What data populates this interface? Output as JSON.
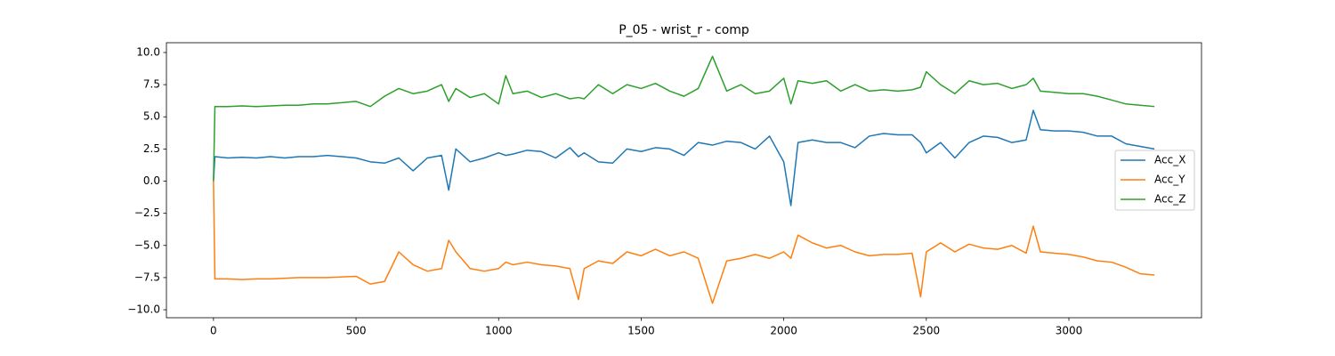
{
  "chart_data": {
    "type": "line",
    "title": "P_05 - wrist_r - comp",
    "x": [
      0,
      5,
      50,
      100,
      150,
      200,
      250,
      300,
      350,
      400,
      450,
      500,
      550,
      600,
      650,
      700,
      750,
      800,
      825,
      850,
      900,
      950,
      1000,
      1025,
      1050,
      1100,
      1150,
      1200,
      1250,
      1280,
      1300,
      1350,
      1400,
      1450,
      1500,
      1550,
      1600,
      1650,
      1700,
      1750,
      1800,
      1850,
      1900,
      1950,
      2000,
      2025,
      2050,
      2100,
      2150,
      2200,
      2250,
      2300,
      2350,
      2400,
      2450,
      2480,
      2500,
      2550,
      2600,
      2650,
      2700,
      2750,
      2800,
      2850,
      2875,
      2900,
      2950,
      3000,
      3050,
      3100,
      3150,
      3200,
      3250,
      3300
    ],
    "series": [
      {
        "name": "Acc_X",
        "color": "#1f77b4",
        "values": [
          0,
          1.9,
          1.8,
          1.85,
          1.8,
          1.9,
          1.8,
          1.9,
          1.9,
          2.0,
          1.9,
          1.8,
          1.5,
          1.4,
          1.8,
          0.8,
          1.8,
          2.0,
          -0.7,
          2.5,
          1.5,
          1.8,
          2.2,
          2.0,
          2.1,
          2.4,
          2.3,
          1.8,
          2.6,
          1.9,
          2.2,
          1.5,
          1.4,
          2.5,
          2.3,
          2.6,
          2.5,
          2.0,
          3.0,
          2.8,
          3.1,
          3.0,
          2.5,
          3.5,
          1.5,
          -1.9,
          3.0,
          3.2,
          3.0,
          3.0,
          2.6,
          3.5,
          3.7,
          3.6,
          3.6,
          3.0,
          2.2,
          3.0,
          1.8,
          3.0,
          3.5,
          3.4,
          3.0,
          3.2,
          5.5,
          4.0,
          3.9,
          3.9,
          3.8,
          3.5,
          3.5,
          2.9,
          2.7,
          2.5
        ]
      },
      {
        "name": "Acc_Y",
        "color": "#ff7f0e",
        "values": [
          0,
          -7.6,
          -7.6,
          -7.65,
          -7.6,
          -7.6,
          -7.55,
          -7.5,
          -7.5,
          -7.5,
          -7.45,
          -7.4,
          -8.0,
          -7.8,
          -5.5,
          -6.5,
          -7.0,
          -6.8,
          -4.6,
          -5.5,
          -6.8,
          -7.0,
          -6.8,
          -6.3,
          -6.5,
          -6.3,
          -6.5,
          -6.6,
          -6.8,
          -9.2,
          -6.8,
          -6.2,
          -6.4,
          -5.5,
          -5.8,
          -5.3,
          -5.8,
          -5.5,
          -6.0,
          -9.5,
          -6.2,
          -6.0,
          -5.7,
          -6.0,
          -5.5,
          -6.0,
          -4.2,
          -4.8,
          -5.2,
          -5.0,
          -5.5,
          -5.8,
          -5.7,
          -5.7,
          -5.6,
          -9.0,
          -5.5,
          -4.8,
          -5.5,
          -4.9,
          -5.2,
          -5.3,
          -5.0,
          -5.6,
          -3.5,
          -5.5,
          -5.6,
          -5.7,
          -5.9,
          -6.2,
          -6.3,
          -6.7,
          -7.2,
          -7.3
        ]
      },
      {
        "name": "Acc_Z",
        "color": "#2ca02c",
        "values": [
          0,
          5.8,
          5.8,
          5.85,
          5.8,
          5.85,
          5.9,
          5.9,
          6.0,
          6.0,
          6.1,
          6.2,
          5.8,
          6.6,
          7.2,
          6.8,
          7.0,
          7.5,
          6.2,
          7.2,
          6.5,
          6.8,
          6.0,
          8.2,
          6.8,
          7.0,
          6.5,
          6.8,
          6.4,
          6.5,
          6.4,
          7.5,
          6.8,
          7.5,
          7.2,
          7.6,
          7.0,
          6.6,
          7.2,
          9.7,
          7.0,
          7.5,
          6.8,
          7.0,
          8.0,
          6.0,
          7.8,
          7.6,
          7.8,
          7.0,
          7.5,
          7.0,
          7.1,
          7.0,
          7.1,
          7.3,
          8.5,
          7.5,
          6.8,
          7.8,
          7.5,
          7.6,
          7.2,
          7.5,
          8.0,
          7.0,
          6.9,
          6.8,
          6.8,
          6.6,
          6.3,
          6.0,
          5.9,
          5.8
        ]
      }
    ],
    "xlim": [
      -165,
      3465
    ],
    "xticks": [
      0,
      500,
      1000,
      1500,
      2000,
      2500,
      3000
    ],
    "ylim": [
      -10.62,
      10.76
    ],
    "yticks": [
      {
        "value": -10,
        "label": "−10.0"
      },
      {
        "value": -7.5,
        "label": "−7.5"
      },
      {
        "value": -5,
        "label": "−5.0"
      },
      {
        "value": -2.5,
        "label": "−2.5"
      },
      {
        "value": 0,
        "label": "0.0"
      },
      {
        "value": 2.5,
        "label": "2.5"
      },
      {
        "value": 5,
        "label": "5.0"
      },
      {
        "value": 7.5,
        "label": "7.5"
      },
      {
        "value": 10,
        "label": "10.0"
      }
    ],
    "legend": "center right",
    "grid": false
  }
}
